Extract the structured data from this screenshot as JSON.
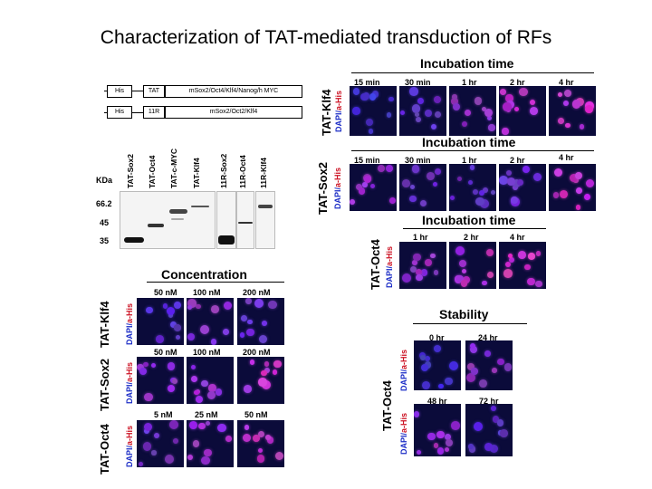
{
  "title": "Characterization of TAT-mediated transduction of RFs",
  "constructs": {
    "row1": [
      "His",
      "TAT",
      "mSox2/Oct4/Klf4/Nanog/h MYC"
    ],
    "row2": [
      "His",
      "11R",
      "mSox2/Oct2/Klf4"
    ]
  },
  "gel": {
    "unit": "KDa",
    "lanes": [
      "TAT-Sox2",
      "TAT-Oct4",
      "TAT-c-MYC",
      "TAT-Klf4",
      "11R-Sox2",
      "11R-Oct4",
      "11R-Klf4"
    ],
    "markers": [
      "66.2",
      "45",
      "35"
    ]
  },
  "stain_label": {
    "dapi": "DAPI/",
    "his": "a-His"
  },
  "incubation": {
    "header": "Incubation time",
    "panels": [
      {
        "protein": "TAT-Klf4",
        "times": [
          "15 min",
          "30 min",
          "1 hr",
          "2 hr",
          "4 hr"
        ]
      },
      {
        "protein": "TAT-Sox2",
        "times": [
          "15 min",
          "30 min",
          "1 hr",
          "2 hr",
          "4 hr"
        ]
      },
      {
        "protein": "TAT-Oct4",
        "times": [
          "1 hr",
          "2 hr",
          "4 hr"
        ]
      }
    ]
  },
  "concentration": {
    "header": "Concentration",
    "rows": [
      {
        "protein": "TAT-Klf4",
        "values": [
          "50 nM",
          "100 nM",
          "200 nM"
        ]
      },
      {
        "protein": "TAT-Sox2",
        "values": [
          "50 nM",
          "100 nM",
          "200 nM"
        ]
      },
      {
        "protein": "TAT-Oct4",
        "values": [
          "5 nM",
          "25 nM",
          "50 nM"
        ]
      }
    ]
  },
  "stability": {
    "header": "Stability",
    "protein": "TAT-Oct4",
    "times": [
      "0 hr",
      "24 hr",
      "48 hr",
      "72 hr"
    ]
  },
  "colors": {
    "dapi": "#1b2cc6",
    "his": "#cc1122",
    "micro_bg": "#0b0b3a"
  }
}
